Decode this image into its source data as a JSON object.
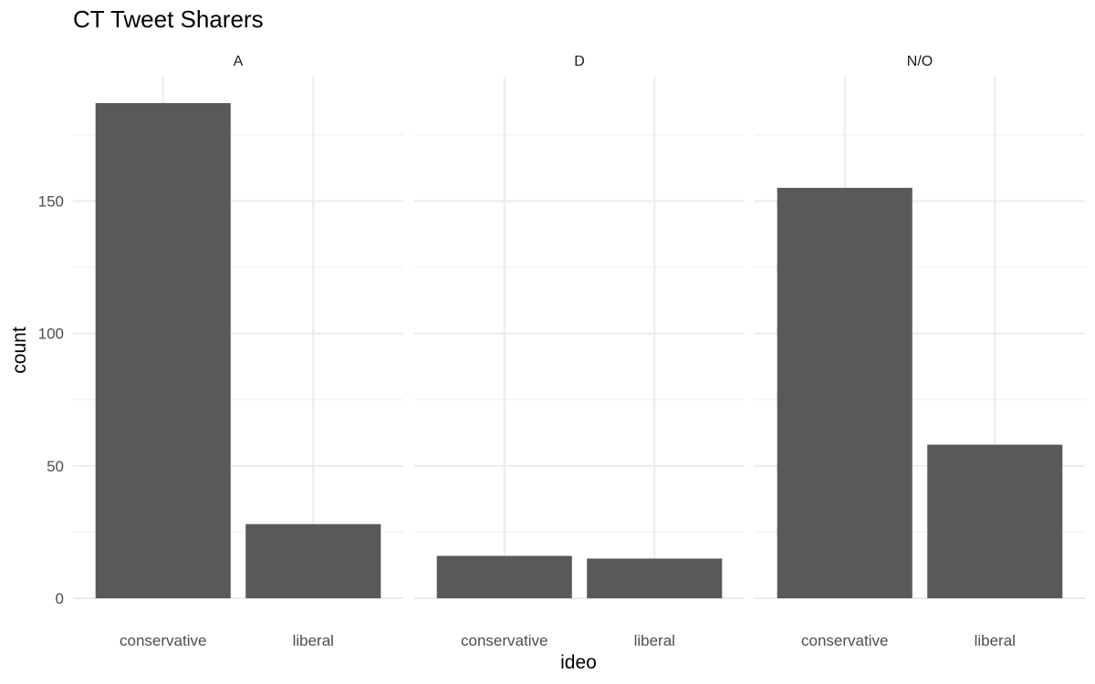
{
  "chart_data": {
    "type": "bar",
    "title": "CT Tweet Sharers",
    "xlabel": "ideo",
    "ylabel": "count",
    "ylim": [
      0,
      197
    ],
    "y_ticks": [
      0,
      50,
      100,
      150
    ],
    "y_minor_ticks": [
      25,
      75,
      125,
      175
    ],
    "grid": true,
    "bar_color": "#595959",
    "facets": [
      {
        "label": "A",
        "categories": [
          "conservative",
          "liberal"
        ],
        "values": [
          187,
          28
        ]
      },
      {
        "label": "D",
        "categories": [
          "conservative",
          "liberal"
        ],
        "values": [
          16,
          15
        ]
      },
      {
        "label": "N/O",
        "categories": [
          "conservative",
          "liberal"
        ],
        "values": [
          155,
          58
        ]
      }
    ]
  }
}
